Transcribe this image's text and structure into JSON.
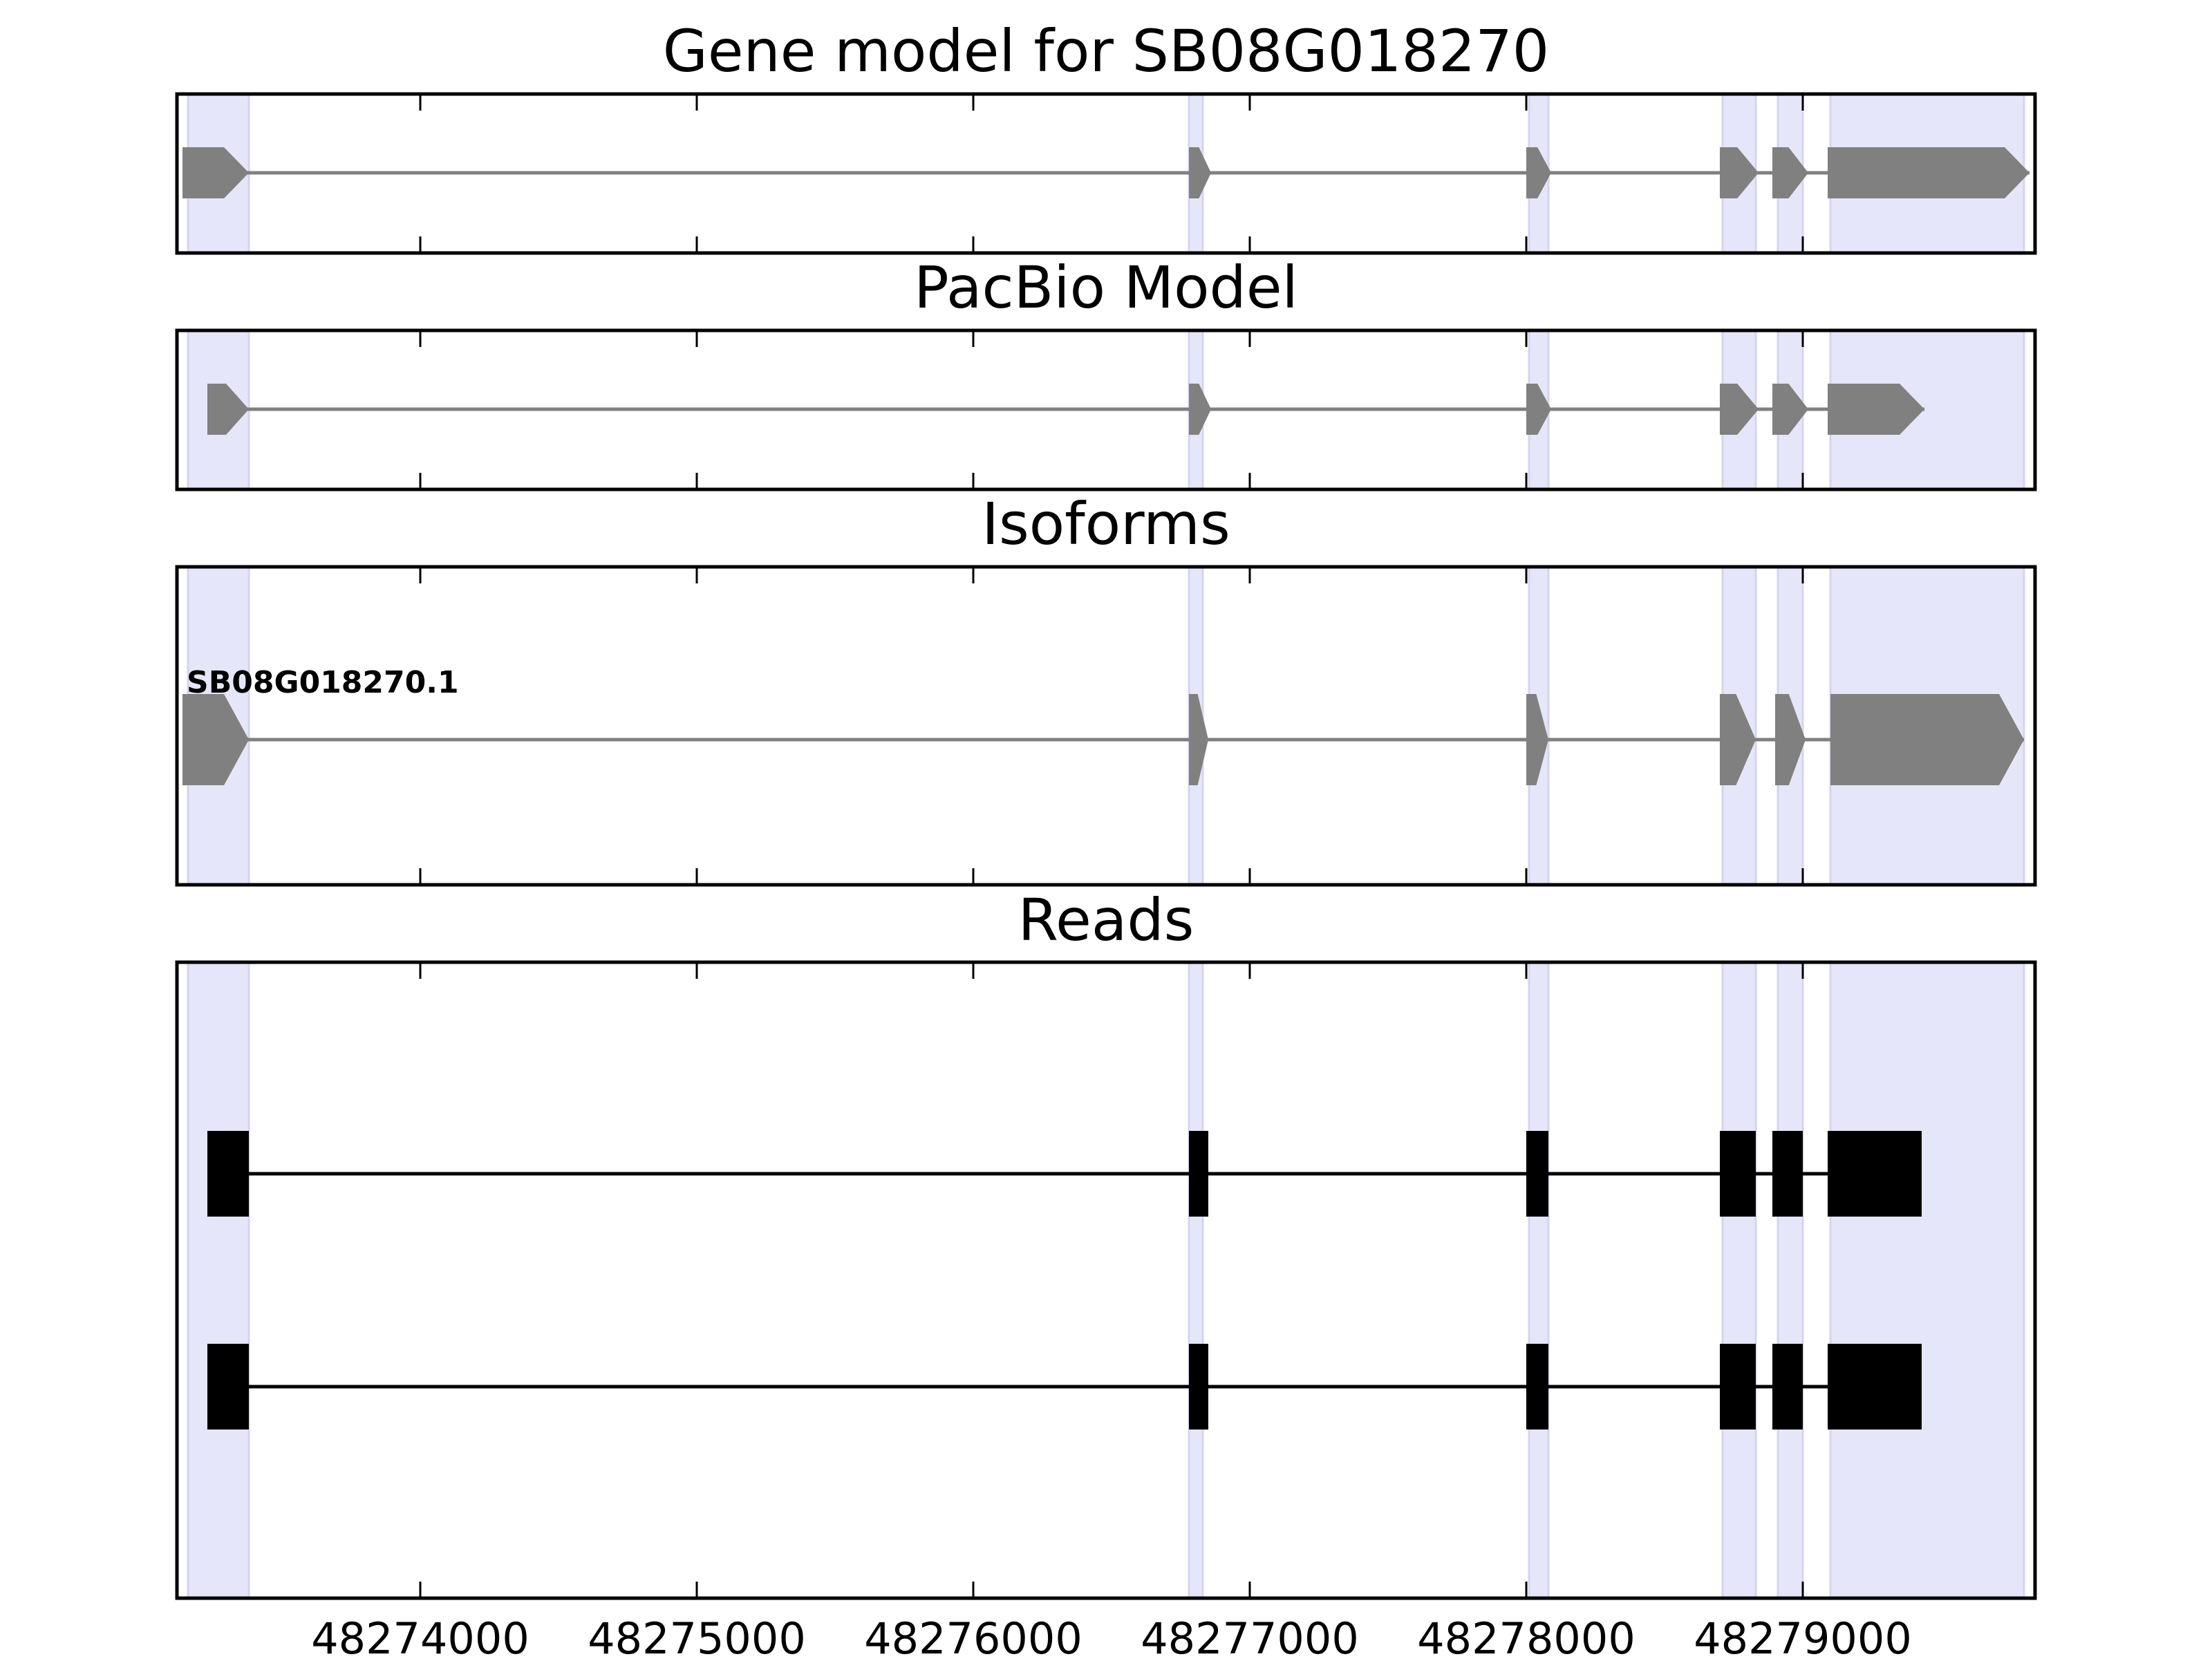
{
  "chart_data": {
    "type": "gene-structure",
    "xlim": [
      48273120,
      48279840
    ],
    "x_ticks": [
      48274000,
      48275000,
      48276000,
      48277000,
      48278000,
      48279000
    ],
    "x_tick_labels": [
      "48274000",
      "48275000",
      "48276000",
      "48277000",
      "48278000",
      "48279000"
    ],
    "strand": "+",
    "colors": {
      "highlight": "#e6e6fa",
      "highlight_edge": "#d4d4f0",
      "model": "#808080",
      "read": "#000000",
      "axis": "#000000"
    },
    "highlight_regions": [
      [
        48273160,
        48273380
      ],
      [
        48276780,
        48276830
      ],
      [
        48278010,
        48278080
      ],
      [
        48278710,
        48278830
      ],
      [
        48278910,
        48279000
      ],
      [
        48279100,
        48279800
      ]
    ],
    "panels": [
      {
        "title": "Gene model for SB08G018270",
        "kind": "model",
        "tracks": [
          {
            "label": "",
            "exons": [
              [
                48273140,
                48273380
              ],
              [
                48276780,
                48276860
              ],
              [
                48278000,
                48278090
              ],
              [
                48278700,
                48278840
              ],
              [
                48278890,
                48279020
              ],
              [
                48279090,
                48279820
              ]
            ]
          }
        ]
      },
      {
        "title": "PacBio Model",
        "kind": "model",
        "tracks": [
          {
            "label": "",
            "exons": [
              [
                48273230,
                48273380
              ],
              [
                48276780,
                48276860
              ],
              [
                48278000,
                48278090
              ],
              [
                48278700,
                48278840
              ],
              [
                48278890,
                48279020
              ],
              [
                48279090,
                48279440
              ]
            ]
          }
        ]
      },
      {
        "title": "Isoforms",
        "kind": "model",
        "tracks": [
          {
            "label": "SB08G018270.1",
            "exons": [
              [
                48273140,
                48273380
              ],
              [
                48276780,
                48276850
              ],
              [
                48278000,
                48278080
              ],
              [
                48278700,
                48278830
              ],
              [
                48278900,
                48279010
              ],
              [
                48279100,
                48279800
              ]
            ]
          }
        ]
      },
      {
        "title": "Reads",
        "kind": "reads",
        "tracks": [
          {
            "label": "",
            "exons": [
              [
                48273230,
                48273380
              ],
              [
                48276780,
                48276850
              ],
              [
                48278000,
                48278080
              ],
              [
                48278700,
                48278830
              ],
              [
                48278890,
                48279000
              ],
              [
                48279090,
                48279430
              ]
            ]
          },
          {
            "label": "",
            "exons": [
              [
                48273230,
                48273380
              ],
              [
                48276780,
                48276850
              ],
              [
                48278000,
                48278080
              ],
              [
                48278700,
                48278830
              ],
              [
                48278890,
                48279000
              ],
              [
                48279090,
                48279430
              ]
            ]
          }
        ]
      }
    ]
  }
}
